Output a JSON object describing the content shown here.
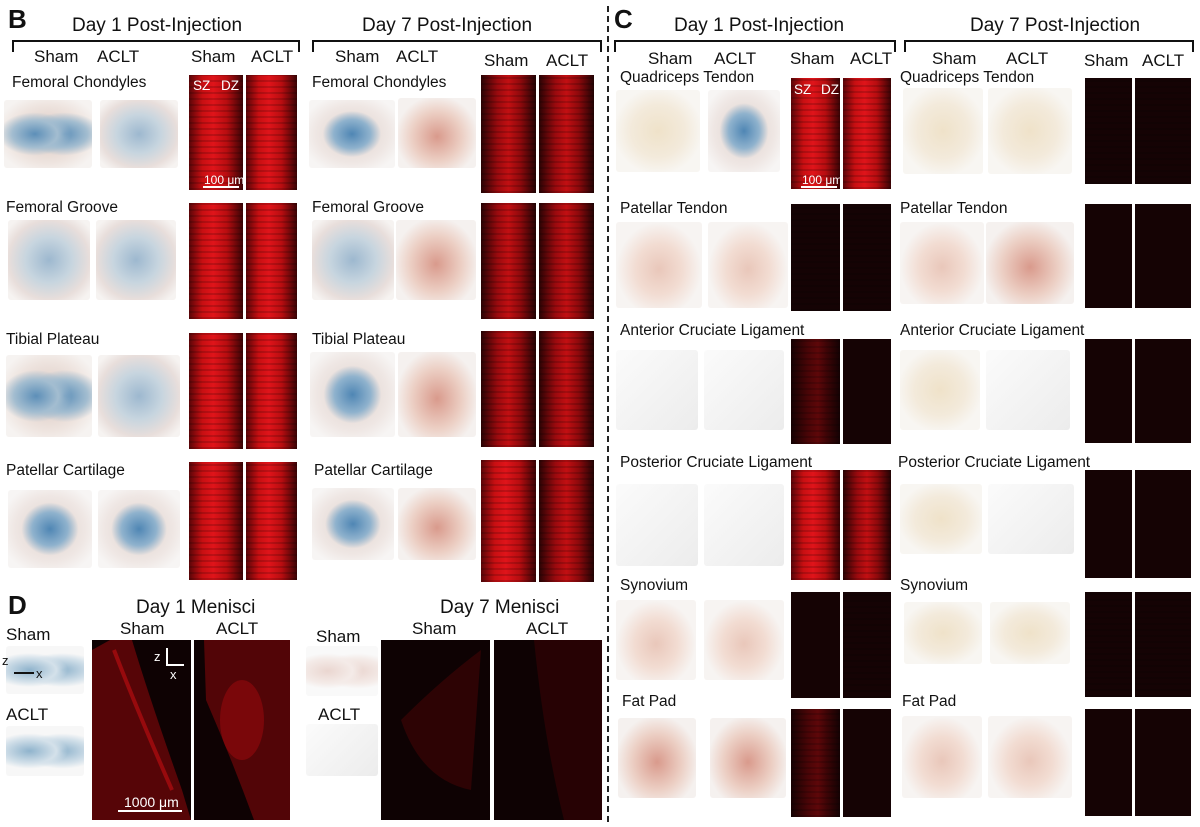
{
  "panels": {
    "B": {
      "letter": "B",
      "day1_header": "Day 1 Post-Injection",
      "day7_header": "Day 7 Post-Injection",
      "sham": "Sham",
      "aclt": "ACLT",
      "rows": [
        "Femoral Chondyles",
        "Femoral Groove",
        "Tibial Plateau",
        "Patellar Cartilage"
      ],
      "sz": "SZ",
      "dz": "DZ",
      "scale": "100 μm"
    },
    "C": {
      "letter": "C",
      "day1_header": "Day 1 Post-Injection",
      "day7_header": "Day 7 Post-Injection",
      "sham": "Sham",
      "aclt": "ACLT",
      "rows": [
        "Quadriceps Tendon",
        "Patellar Tendon",
        "Anterior Cruciate Ligament",
        "Posterior Cruciate Ligament",
        "Synovium",
        "Fat Pad"
      ],
      "sz": "SZ",
      "dz": "DZ",
      "scale": "100 μm"
    },
    "D": {
      "letter": "D",
      "day1_header": "Day 1 Menisci",
      "day7_header": "Day 7 Menisci",
      "sham": "Sham",
      "aclt": "ACLT",
      "axis_z": "z",
      "axis_x": "x",
      "scale": "1000 μm"
    }
  }
}
